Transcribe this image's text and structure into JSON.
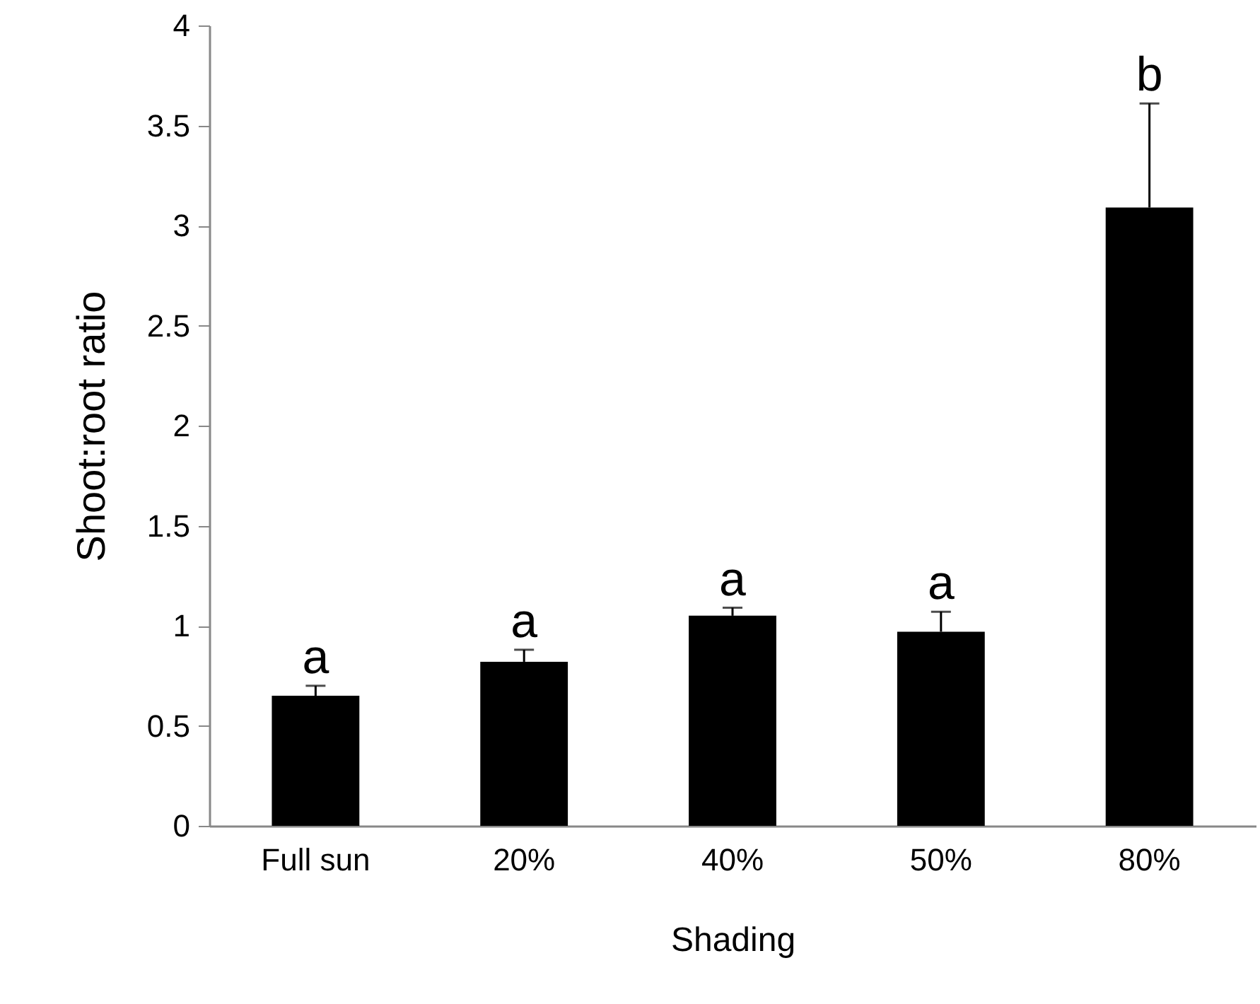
{
  "chart_data": {
    "type": "bar",
    "xlabel": "Shading",
    "ylabel": "Shoot:root ratio",
    "categories": [
      "Full sun",
      "20%",
      "40%",
      "50%",
      "80%"
    ],
    "values": [
      0.65,
      0.82,
      1.05,
      0.97,
      3.09
    ],
    "color": "#000000",
    "errors": [
      [
        0.65,
        0.7
      ],
      [
        0.82,
        0.88
      ],
      [
        1.05,
        1.09
      ],
      [
        0.97,
        1.07
      ],
      [
        3.09,
        3.61
      ]
    ],
    "ylim": [
      0,
      4
    ],
    "yticks": [
      0,
      0.5,
      1,
      1.5,
      2,
      2.5,
      3,
      3.5,
      4
    ],
    "grid": false,
    "annotations": [
      {
        "text": "a",
        "x": "Full sun",
        "y": 0.7
      },
      {
        "text": "a",
        "x": "20%",
        "y": 0.88
      },
      {
        "text": "a",
        "x": "40%",
        "y": 1.09
      },
      {
        "text": "a",
        "x": "50%",
        "y": 1.07
      },
      {
        "text": "b",
        "x": "80%",
        "y": 3.61
      }
    ]
  }
}
